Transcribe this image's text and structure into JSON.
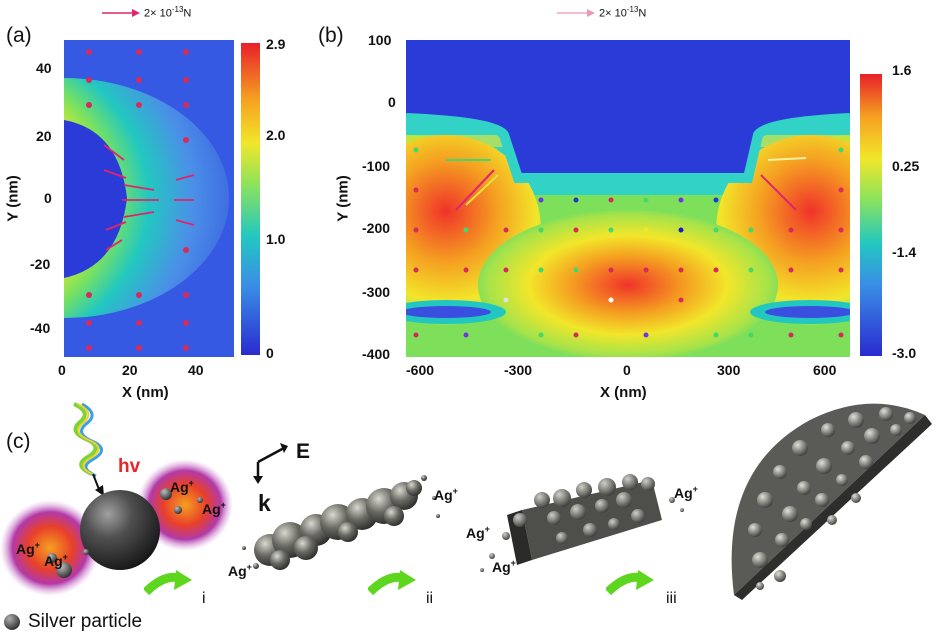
{
  "panel_a": {
    "label": "(a)",
    "scale_bar": {
      "multiplier": "2×",
      "magnitude": "10",
      "exponent": "-13",
      "unit": "N"
    },
    "x_axis": {
      "title": "X (nm)",
      "ticks": [
        "0",
        "20",
        "40"
      ]
    },
    "y_axis": {
      "title": "Y (nm)",
      "ticks": [
        "40",
        "20",
        "0",
        "-20",
        "-40"
      ]
    },
    "colorbar": {
      "ticks": [
        "2.9",
        "2.0",
        "1.0",
        "0"
      ]
    }
  },
  "panel_b": {
    "label": "(b)",
    "scale_bar": {
      "multiplier": "2×",
      "magnitude": "10",
      "exponent": "-13",
      "unit": "N"
    },
    "x_axis": {
      "title": "X (nm)",
      "ticks": [
        "-600",
        "-300",
        "0",
        "300",
        "600"
      ]
    },
    "y_axis": {
      "title": "Y (nm)",
      "ticks": [
        "100",
        "0",
        "-100",
        "-200",
        "-300",
        "-400"
      ]
    },
    "colorbar": {
      "ticks": [
        "1.6",
        "0.25",
        "-1.4",
        "-3.0"
      ]
    }
  },
  "panel_c": {
    "label": "(c)",
    "light_label": "hv",
    "ion_label": "Ag",
    "ion_charge": "+",
    "field_label": "E",
    "wave_label": "k",
    "steps": [
      "i",
      "ii",
      "iii"
    ],
    "legend_label": "Silver particle"
  },
  "colors": {
    "low": "#2a3bd8",
    "mid": "#22c8c0",
    "high": "#f0332a",
    "arrow": "#e0256b",
    "step_arrow": "#5ed61e",
    "hv": "#e8262a",
    "sphere": "#4a4a4a"
  }
}
